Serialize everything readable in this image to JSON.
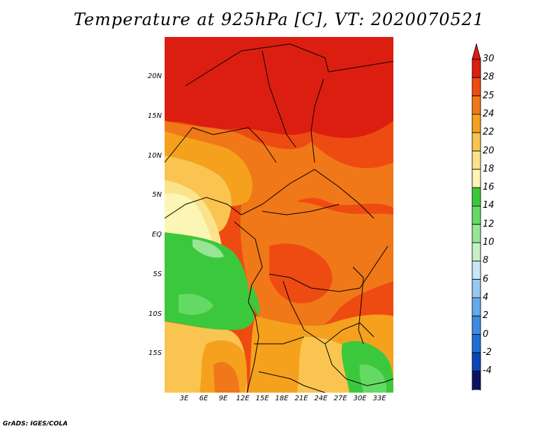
{
  "title": "Temperature at 925hPa [C], VT: 2020070521",
  "footer": "GrADS: IGES/COLA",
  "map": {
    "lat_labels": [
      "20N",
      "15N",
      "10N",
      "5N",
      "EQ",
      "5S",
      "10S",
      "15S"
    ],
    "lon_labels": [
      "3E",
      "6E",
      "9E",
      "12E",
      "15E",
      "18E",
      "21E",
      "24E",
      "27E",
      "30E",
      "33E"
    ],
    "lon_range": [
      0,
      35
    ],
    "lat_range": [
      -20,
      24
    ],
    "variable": "Temperature",
    "units": "C"
  },
  "colorbar": {
    "labels": [
      "30",
      "28",
      "25",
      "24",
      "22",
      "20",
      "18",
      "16",
      "14",
      "12",
      "10",
      "8",
      "6",
      "4",
      "2",
      "0",
      "-2",
      "-4"
    ],
    "colors": [
      "#dc1e10",
      "#ee4b12",
      "#f07818",
      "#f5a11e",
      "#f9c550",
      "#fbe28c",
      "#fbf6b4",
      "#3cc83c",
      "#64da64",
      "#96e696",
      "#c8f0c8",
      "#c8e6f5",
      "#96c8f0",
      "#64aaeb",
      "#3c8ce1",
      "#1e6ed2",
      "#0a46b4",
      "#0a1464"
    ],
    "over_color": "#dc1e10",
    "under_color": "#d2d2f0"
  }
}
